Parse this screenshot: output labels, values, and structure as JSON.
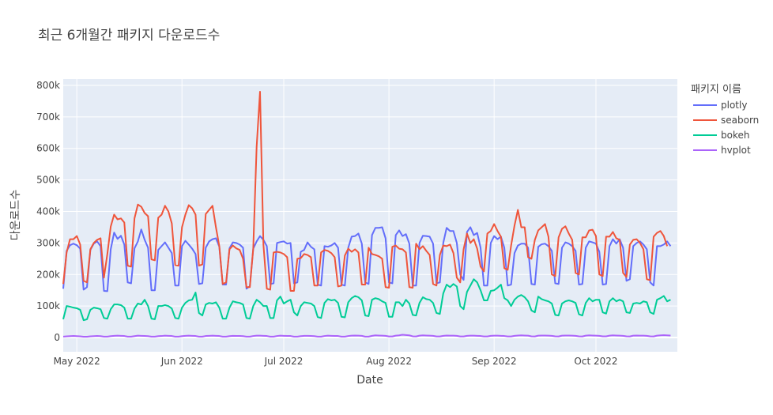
{
  "chart_data": {
    "type": "line",
    "title": "최근 6개월간 패키지 다운로드수",
    "xlabel": "Date",
    "ylabel": "다운로드수",
    "x_start": "2022-04-27",
    "x_end": "2022-10-25",
    "xlim": [
      "2022-04-27",
      "2022-10-25"
    ],
    "ylim": [
      -45000,
      820000
    ],
    "x_ticks": [
      {
        "label": "May 2022",
        "date": "2022-05-01"
      },
      {
        "label": "Jun 2022",
        "date": "2022-06-01"
      },
      {
        "label": "Jul 2022",
        "date": "2022-07-01"
      },
      {
        "label": "Aug 2022",
        "date": "2022-08-01"
      },
      {
        "label": "Sep 2022",
        "date": "2022-09-01"
      },
      {
        "label": "Oct 2022",
        "date": "2022-10-01"
      }
    ],
    "y_ticks": [
      {
        "label": "0",
        "value": 0
      },
      {
        "label": "100k",
        "value": 100000
      },
      {
        "label": "200k",
        "value": 200000
      },
      {
        "label": "300k",
        "value": 300000
      },
      {
        "label": "400k",
        "value": 400000
      },
      {
        "label": "500k",
        "value": 500000
      },
      {
        "label": "600k",
        "value": 600000
      },
      {
        "label": "700k",
        "value": 700000
      },
      {
        "label": "800k",
        "value": 800000
      }
    ],
    "grid": true,
    "legend": {
      "title": "패키지 이름",
      "placement": "top-right"
    },
    "series": [
      {
        "name": "plotly",
        "color": "#636efa",
        "values": [
          155000,
          275000,
          293000,
          298000,
          293000,
          282000,
          152000,
          160000,
          278000,
          298000,
          305000,
          290000,
          148000,
          147000,
          280000,
          333000,
          313000,
          323000,
          295000,
          175000,
          172000,
          283000,
          305000,
          343000,
          310000,
          285000,
          150000,
          150000,
          278000,
          290000,
          302000,
          285000,
          268000,
          165000,
          165000,
          290000,
          307000,
          295000,
          282000,
          265000,
          170000,
          172000,
          285000,
          305000,
          312000,
          315000,
          288000,
          168000,
          168000,
          283000,
          302000,
          300000,
          295000,
          285000,
          155000,
          163000,
          282000,
          305000,
          322000,
          310000,
          290000,
          170000,
          172000,
          300000,
          303000,
          305000,
          298000,
          300000,
          172000,
          175000,
          272000,
          278000,
          302000,
          288000,
          280000,
          168000,
          165000,
          290000,
          288000,
          292000,
          300000,
          285000,
          168000,
          165000,
          285000,
          320000,
          322000,
          330000,
          298000,
          175000,
          170000,
          325000,
          348000,
          348000,
          350000,
          315000,
          175000,
          172000,
          325000,
          340000,
          322000,
          328000,
          298000,
          165000,
          165000,
          300000,
          323000,
          322000,
          320000,
          298000,
          172000,
          175000,
          300000,
          348000,
          338000,
          338000,
          300000,
          200000,
          183000,
          335000,
          350000,
          325000,
          332000,
          285000,
          165000,
          165000,
          300000,
          322000,
          312000,
          320000,
          285000,
          165000,
          168000,
          268000,
          292000,
          298000,
          298000,
          285000,
          170000,
          168000,
          288000,
          296000,
          298000,
          290000,
          275000,
          172000,
          170000,
          285000,
          302000,
          298000,
          290000,
          275000,
          168000,
          170000,
          285000,
          305000,
          302000,
          298000,
          272000,
          168000,
          170000,
          290000,
          312000,
          298000,
          312000,
          285000,
          180000,
          185000,
          290000,
          300000,
          305000,
          295000,
          280000,
          175000,
          165000,
          290000,
          290000,
          295000,
          305000,
          290000
        ]
      },
      {
        "name": "seaborn",
        "color": "#ef553b",
        "values": [
          170000,
          270000,
          312000,
          312000,
          322000,
          295000,
          180000,
          175000,
          280000,
          300000,
          310000,
          315000,
          190000,
          265000,
          352000,
          390000,
          375000,
          378000,
          365000,
          228000,
          225000,
          378000,
          422000,
          415000,
          395000,
          385000,
          248000,
          245000,
          380000,
          390000,
          418000,
          400000,
          362000,
          230000,
          228000,
          350000,
          390000,
          420000,
          410000,
          390000,
          228000,
          232000,
          392000,
          405000,
          418000,
          350000,
          290000,
          170000,
          175000,
          280000,
          292000,
          283000,
          278000,
          250000,
          160000,
          160000,
          282000,
          605000,
          780000,
          295000,
          155000,
          152000,
          270000,
          272000,
          270000,
          265000,
          255000,
          148000,
          148000,
          250000,
          252000,
          265000,
          262000,
          255000,
          165000,
          165000,
          270000,
          278000,
          275000,
          268000,
          255000,
          162000,
          165000,
          260000,
          282000,
          272000,
          280000,
          270000,
          168000,
          168000,
          285000,
          265000,
          262000,
          258000,
          250000,
          160000,
          158000,
          288000,
          292000,
          282000,
          280000,
          270000,
          160000,
          158000,
          298000,
          280000,
          290000,
          275000,
          262000,
          170000,
          165000,
          262000,
          292000,
          290000,
          295000,
          268000,
          190000,
          175000,
          280000,
          330000,
          300000,
          312000,
          282000,
          225000,
          210000,
          330000,
          338000,
          360000,
          338000,
          320000,
          220000,
          215000,
          292000,
          355000,
          405000,
          350000,
          350000,
          255000,
          250000,
          310000,
          340000,
          350000,
          360000,
          320000,
          200000,
          195000,
          318000,
          345000,
          353000,
          330000,
          310000,
          205000,
          200000,
          318000,
          318000,
          340000,
          342000,
          322000,
          200000,
          195000,
          320000,
          320000,
          335000,
          315000,
          310000,
          205000,
          192000,
          295000,
          310000,
          312000,
          300000,
          280000,
          185000,
          182000,
          320000,
          332000,
          338000,
          322000,
          290000
        ]
      },
      {
        "name": "bokeh",
        "color": "#00cc96",
        "values": [
          58000,
          100000,
          98000,
          95000,
          93000,
          88000,
          55000,
          58000,
          88000,
          95000,
          93000,
          90000,
          62000,
          60000,
          90000,
          105000,
          105000,
          103000,
          95000,
          60000,
          60000,
          92000,
          108000,
          105000,
          120000,
          100000,
          60000,
          58000,
          100000,
          100000,
          103000,
          100000,
          92000,
          62000,
          60000,
          95000,
          110000,
          118000,
          120000,
          143000,
          78000,
          70000,
          105000,
          110000,
          108000,
          112000,
          95000,
          60000,
          60000,
          95000,
          115000,
          112000,
          110000,
          105000,
          62000,
          60000,
          100000,
          120000,
          112000,
          100000,
          100000,
          62000,
          62000,
          118000,
          130000,
          108000,
          115000,
          120000,
          80000,
          70000,
          100000,
          112000,
          110000,
          108000,
          100000,
          65000,
          62000,
          110000,
          122000,
          118000,
          120000,
          110000,
          66000,
          64000,
          112000,
          125000,
          132000,
          128000,
          118000,
          70000,
          68000,
          120000,
          125000,
          122000,
          115000,
          110000,
          66000,
          66000,
          112000,
          112000,
          100000,
          120000,
          108000,
          72000,
          70000,
          110000,
          128000,
          122000,
          120000,
          110000,
          78000,
          75000,
          140000,
          168000,
          160000,
          170000,
          162000,
          100000,
          90000,
          145000,
          165000,
          185000,
          175000,
          150000,
          118000,
          118000,
          148000,
          150000,
          158000,
          168000,
          125000,
          118000,
          100000,
          120000,
          130000,
          135000,
          128000,
          115000,
          86000,
          80000,
          130000,
          122000,
          118000,
          115000,
          108000,
          72000,
          70000,
          108000,
          115000,
          118000,
          115000,
          110000,
          74000,
          70000,
          110000,
          125000,
          115000,
          120000,
          120000,
          80000,
          76000,
          115000,
          125000,
          115000,
          120000,
          115000,
          80000,
          78000,
          108000,
          110000,
          108000,
          115000,
          112000,
          80000,
          75000,
          120000,
          125000,
          132000,
          115000,
          120000
        ]
      },
      {
        "name": "hvplot",
        "color": "#ab63fa",
        "values": [
          3000,
          4000,
          4500,
          5000,
          4500,
          4000,
          2500,
          2500,
          4000,
          4500,
          5000,
          4500,
          3000,
          3000,
          4500,
          5500,
          6000,
          5500,
          5000,
          3000,
          3000,
          4500,
          6000,
          5500,
          5000,
          4500,
          3000,
          3000,
          4500,
          5000,
          6000,
          5500,
          5000,
          3000,
          3000,
          4500,
          5500,
          6000,
          5500,
          5000,
          3000,
          3000,
          5000,
          5500,
          6000,
          5500,
          5000,
          3000,
          3000,
          4500,
          5500,
          5000,
          5000,
          4500,
          3000,
          3000,
          5000,
          6000,
          6000,
          5500,
          5000,
          3000,
          3000,
          5000,
          6000,
          5500,
          5000,
          5000,
          3000,
          3000,
          4500,
          5500,
          5500,
          5000,
          4500,
          3000,
          3000,
          5000,
          6000,
          5500,
          5000,
          5000,
          3000,
          3000,
          5000,
          6000,
          6500,
          6000,
          5500,
          3000,
          3000,
          5500,
          7000,
          6500,
          6000,
          5500,
          3500,
          3500,
          6000,
          7000,
          9000,
          8000,
          7000,
          4000,
          3500,
          6000,
          7000,
          6500,
          6000,
          5500,
          3500,
          3500,
          5500,
          6500,
          6000,
          6000,
          5500,
          3500,
          3500,
          5500,
          6000,
          6000,
          5500,
          5000,
          3500,
          3500,
          5500,
          6000,
          6000,
          5500,
          5000,
          3500,
          3500,
          5500,
          6500,
          7000,
          6500,
          6000,
          4000,
          3500,
          6000,
          6500,
          6500,
          6000,
          5500,
          4000,
          3500,
          6000,
          6500,
          6500,
          6000,
          5500,
          4000,
          3500,
          6000,
          7000,
          6500,
          6000,
          5500,
          4000,
          4000,
          6000,
          7000,
          6500,
          6000,
          5500,
          4000,
          3500,
          6000,
          6500,
          6000,
          6000,
          5500,
          4000,
          3500,
          6000,
          7000,
          7500,
          7000,
          6500
        ]
      }
    ]
  }
}
